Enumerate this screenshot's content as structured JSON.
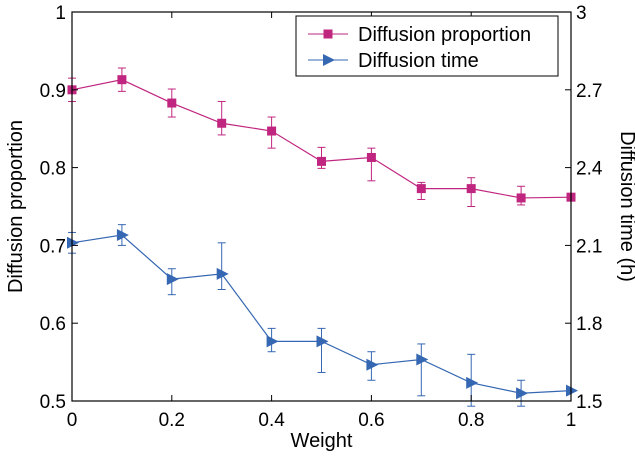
{
  "chart_data": {
    "type": "line",
    "xlabel": "Weight",
    "ylabel_left": "Diffusion proportion",
    "ylabel_right": "Diffusion time (h)",
    "xlim": [
      0,
      1
    ],
    "ylim_left": [
      0.5,
      1
    ],
    "ylim_right": [
      1.5,
      3
    ],
    "x_ticks": [
      "0",
      "0.2",
      "0.4",
      "0.6",
      "0.8",
      "1"
    ],
    "y_left_ticks": [
      "0.5",
      "0.6",
      "0.7",
      "0.8",
      "0.9",
      "1"
    ],
    "y_right_ticks": [
      "1.5",
      "1.8",
      "2.1",
      "2.4",
      "2.7",
      "3"
    ],
    "legend_position": "top-right",
    "grid": false,
    "x": [
      0,
      0.1,
      0.2,
      0.3,
      0.4,
      0.5,
      0.6,
      0.7,
      0.8,
      0.9,
      1.0
    ],
    "series": [
      {
        "name": "Diffusion proportion",
        "axis": "left",
        "color": "#c0267f",
        "marker": "square",
        "values": [
          0.9,
          0.913,
          0.883,
          0.857,
          0.847,
          0.808,
          0.813,
          0.773,
          0.773,
          0.761,
          0.762
        ],
        "err_low": [
          0.015,
          0.015,
          0.018,
          0.015,
          0.022,
          0.009,
          0.03,
          0.014,
          0.023,
          0.009,
          0.0
        ],
        "err_high": [
          0.015,
          0.015,
          0.018,
          0.028,
          0.018,
          0.018,
          0.012,
          0.008,
          0.014,
          0.015,
          0.0
        ]
      },
      {
        "name": "Diffusion time",
        "axis": "right",
        "color": "#3567b3",
        "marker": "triangle-right",
        "values": [
          2.11,
          2.14,
          1.97,
          1.99,
          1.73,
          1.73,
          1.64,
          1.66,
          1.57,
          1.53,
          1.54
        ],
        "err_low": [
          0.04,
          0.04,
          0.06,
          0.06,
          0.04,
          0.12,
          0.06,
          0.14,
          0.09,
          0.05,
          0.0
        ],
        "err_high": [
          0.04,
          0.04,
          0.04,
          0.12,
          0.05,
          0.05,
          0.05,
          0.06,
          0.11,
          0.05,
          0.0
        ]
      }
    ]
  }
}
